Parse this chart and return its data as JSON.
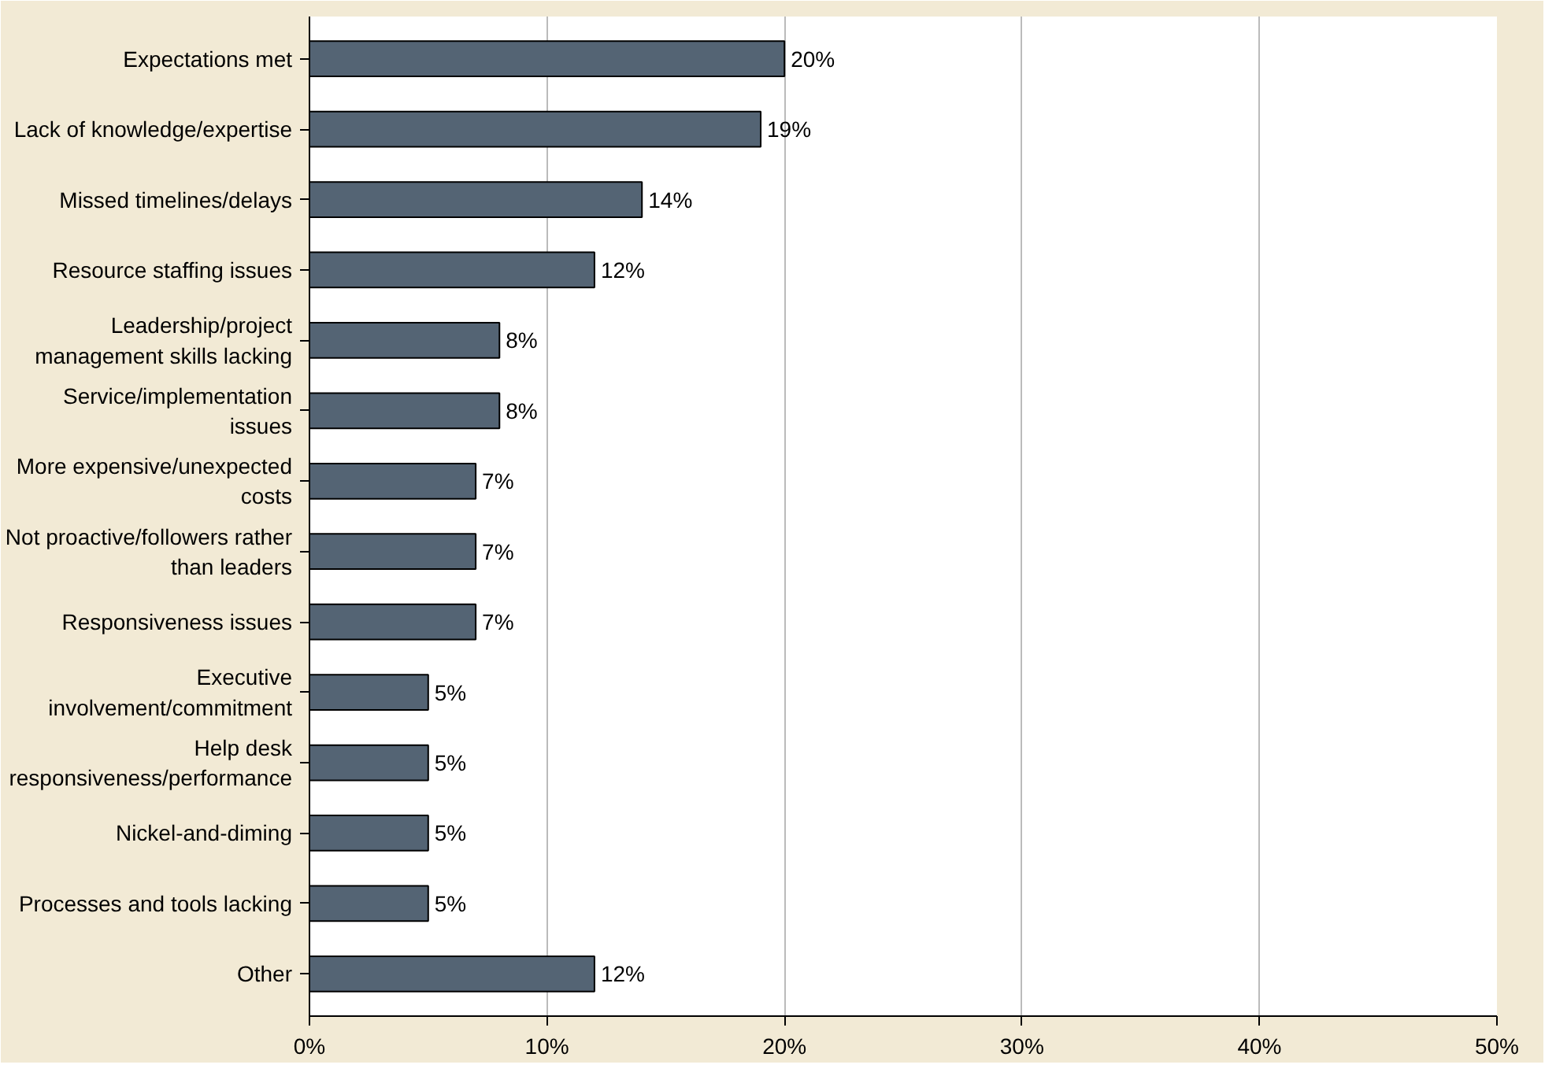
{
  "chart_data": {
    "type": "bar",
    "orientation": "horizontal",
    "categories": [
      "Expectations met",
      "Lack of knowledge/expertise",
      "Missed timelines/delays",
      "Resource staffing issues",
      "Leadership/project\nmanagement skills lacking",
      "Service/implementation\nissues",
      "More expensive/unexpected\ncosts",
      "Not proactive/followers rather\nthan leaders",
      "Responsiveness issues",
      "Executive\ninvolvement/commitment",
      "Help desk\nresponsiveness/performance",
      "Nickel-and-diming",
      "Processes and tools lacking",
      "Other"
    ],
    "values": [
      20,
      19,
      14,
      12,
      8,
      8,
      7,
      7,
      7,
      5,
      5,
      5,
      5,
      12
    ],
    "value_labels": [
      "20%",
      "19%",
      "14%",
      "12%",
      "8%",
      "8%",
      "7%",
      "7%",
      "7%",
      "5%",
      "5%",
      "5%",
      "5%",
      "12%"
    ],
    "color": "#546474",
    "xlim": [
      0,
      50
    ],
    "xticks": [
      {
        "value": 0,
        "label": "0%"
      },
      {
        "value": 10,
        "label": "10%"
      },
      {
        "value": 20,
        "label": "20%"
      },
      {
        "value": 30,
        "label": "30%"
      },
      {
        "value": 40,
        "label": "40%"
      },
      {
        "value": 50,
        "label": "50%"
      }
    ],
    "grid": "x"
  }
}
